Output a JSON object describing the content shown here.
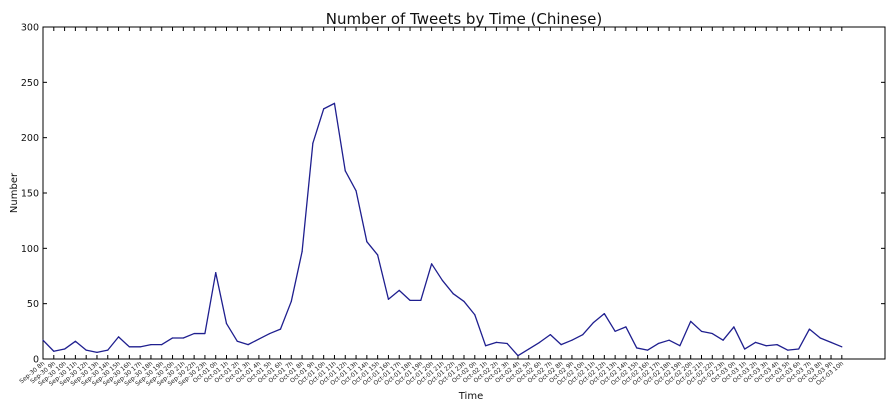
{
  "chart_data": {
    "type": "line",
    "title": "Number of Tweets by Time (Chinese)",
    "xlabel": "Time",
    "ylabel": "Number",
    "ylim": [
      0,
      300
    ],
    "yticks": [
      0,
      50,
      100,
      150,
      200,
      250,
      300
    ],
    "grid": false,
    "line_color": "#1f1f8f",
    "categories": [
      "Sep-30 8h",
      "Sep-30 9h",
      "Sep-30 10h",
      "Sep-30 11h",
      "Sep-30 12h",
      "Sep-30 13h",
      "Sep-30 14h",
      "Sep-30 15h",
      "Sep-30 16h",
      "Sep-30 17h",
      "Sep-30 18h",
      "Sep-30 19h",
      "Sep-30 20h",
      "Sep-30 21h",
      "Sep-30 22h",
      "Sep-30 23h",
      "Oct-01 0h",
      "Oct-01 1h",
      "Oct-01 2h",
      "Oct-01 3h",
      "Oct-01 4h",
      "Oct-01 5h",
      "Oct-01 6h",
      "Oct-01 7h",
      "Oct-01 8h",
      "Oct-01 9h",
      "Oct-01 10h",
      "Oct-01 11h",
      "Oct-01 12h",
      "Oct-01 13h",
      "Oct-01 14h",
      "Oct-01 15h",
      "Oct-01 16h",
      "Oct-01 17h",
      "Oct-01 18h",
      "Oct-01 19h",
      "Oct-01 20h",
      "Oct-01 21h",
      "Oct-01 22h",
      "Oct-01 23h",
      "Oct-02 0h",
      "Oct-02 1h",
      "Oct-02 2h",
      "Oct-02 3h",
      "Oct-02 4h",
      "Oct-02 5h",
      "Oct-02 6h",
      "Oct-02 7h",
      "Oct-02 8h",
      "Oct-02 9h",
      "Oct-02 10h",
      "Oct-02 11h",
      "Oct-02 12h",
      "Oct-02 13h",
      "Oct-02 14h",
      "Oct-02 15h",
      "Oct-02 16h",
      "Oct-02 17h",
      "Oct-02 18h",
      "Oct-02 19h",
      "Oct-02 20h",
      "Oct-02 21h",
      "Oct-02 22h",
      "Oct-02 23h",
      "Oct-03 0h",
      "Oct-03 1h",
      "Oct-03 2h",
      "Oct-03 3h",
      "Oct-03 4h",
      "Oct-03 5h",
      "Oct-03 6h",
      "Oct-03 7h",
      "Oct-03 8h",
      "Oct-03 9h",
      "Oct-03 10h"
    ],
    "values": [
      17,
      7,
      9,
      16,
      8,
      6,
      8,
      20,
      11,
      11,
      13,
      13,
      19,
      19,
      23,
      23,
      78,
      32,
      16,
      13,
      18,
      23,
      27,
      52,
      97,
      195,
      226,
      231,
      170,
      152,
      106,
      94,
      54,
      62,
      53,
      53,
      86,
      71,
      59,
      52,
      40,
      12,
      15,
      14,
      3,
      9,
      15,
      22,
      13,
      17,
      22,
      33,
      41,
      25,
      29,
      10,
      8,
      14,
      17,
      12,
      34,
      25,
      23,
      17,
      29,
      9,
      15,
      12,
      13,
      8,
      9,
      27,
      19,
      15,
      11
    ]
  }
}
